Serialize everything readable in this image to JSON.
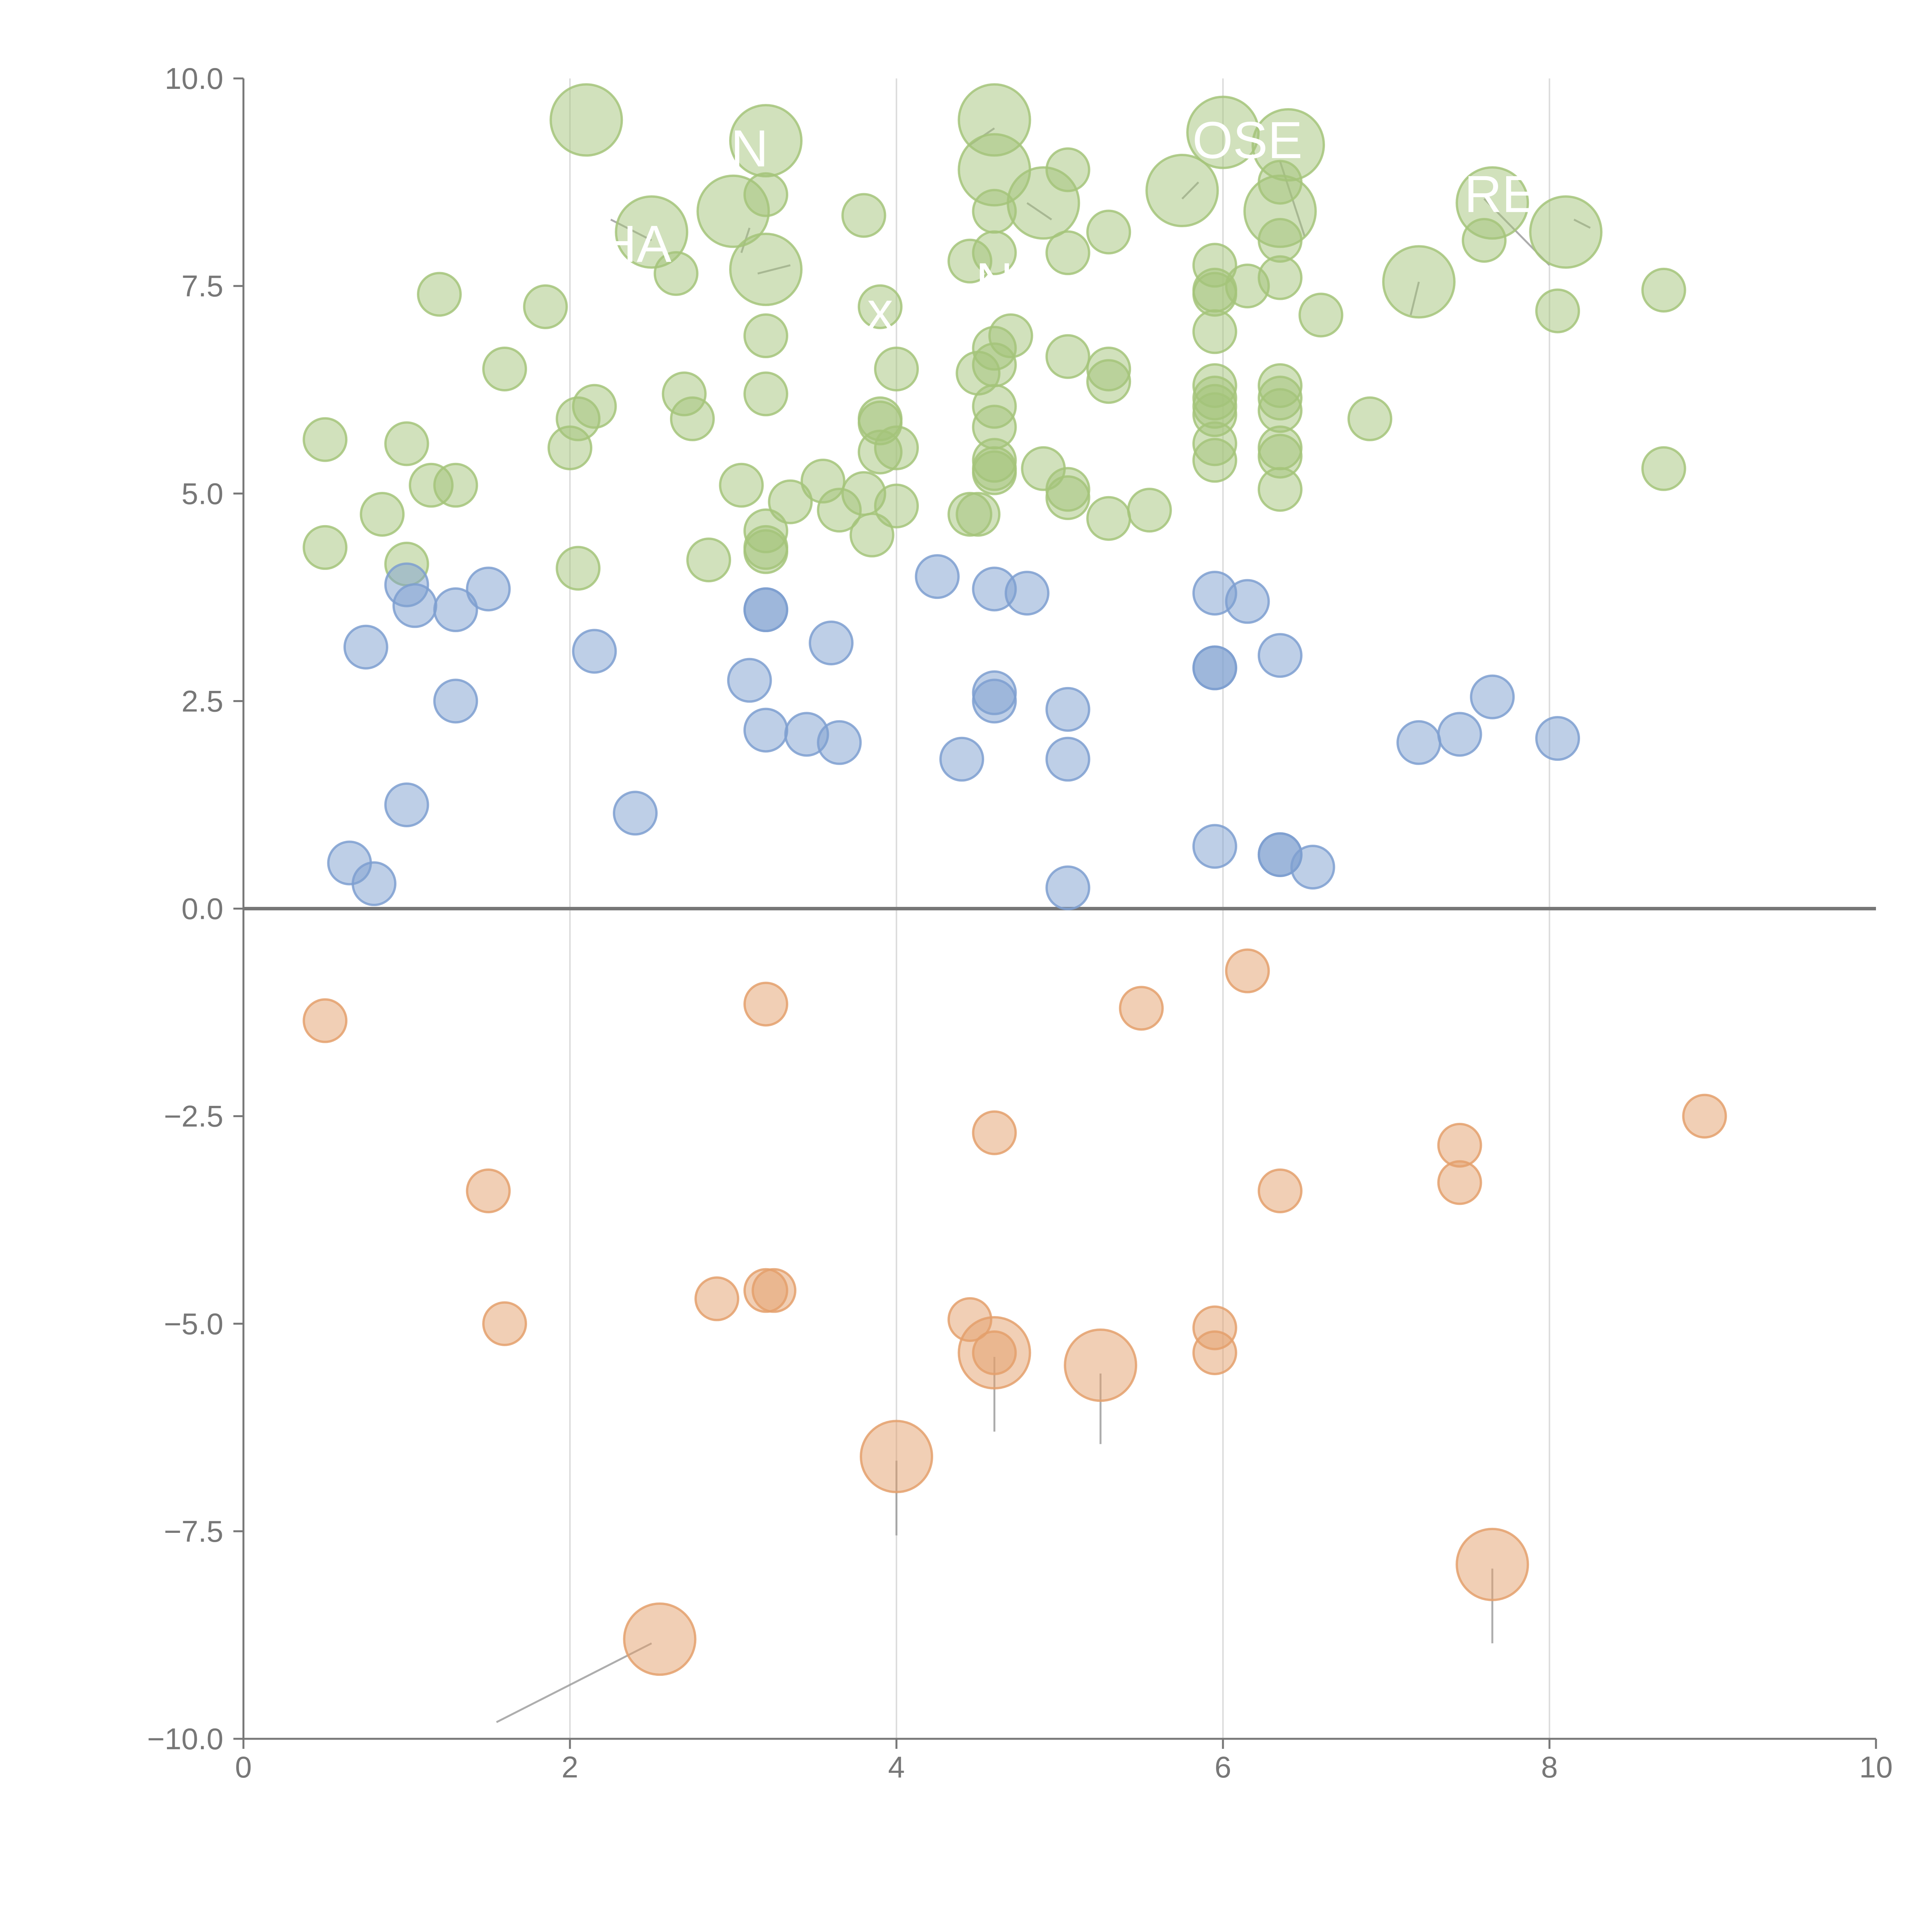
{
  "chart_data": {
    "type": "scatter",
    "title": "",
    "xlabel": "",
    "ylabel": "",
    "xlim": [
      0,
      10
    ],
    "ylim": [
      -10,
      10
    ],
    "x_ticks": [
      0,
      2,
      4,
      6,
      8,
      10
    ],
    "x_tick_labels": [
      "0",
      "2",
      "4",
      "6",
      "8",
      "10"
    ],
    "y_ticks": [
      10,
      7.5,
      5,
      2.5,
      0,
      -2.5,
      -5,
      -7.5,
      -10
    ],
    "y_tick_labels": [
      "10.0",
      "7.5",
      "5.0",
      "2.5",
      "0.0",
      "−2.5",
      "−5.0",
      "−7.5",
      "−10.0"
    ],
    "grid": {
      "x": true,
      "y": false
    },
    "zero_line": true,
    "legend": "none",
    "colors": {
      "green": "#a4c47a",
      "blue": "#7e9fd0",
      "orange": "#e4a06c",
      "grid": "#dddddd",
      "axis": "#777777"
    },
    "series": [
      {
        "color": "green",
        "points": [
          {
            "x": 2.1,
            "y": 9.5,
            "s": 3
          },
          {
            "x": 3.2,
            "y": 9.25,
            "s": 3
          },
          {
            "x": 4.6,
            "y": 9.5,
            "s": 3
          },
          {
            "x": 6.0,
            "y": 9.35,
            "s": 3
          },
          {
            "x": 6.4,
            "y": 9.2,
            "s": 3
          },
          {
            "x": 2.5,
            "y": 8.15,
            "s": 3
          },
          {
            "x": 3.0,
            "y": 8.4,
            "s": 3
          },
          {
            "x": 3.2,
            "y": 7.7,
            "s": 3
          },
          {
            "x": 4.6,
            "y": 8.9,
            "s": 3
          },
          {
            "x": 4.9,
            "y": 8.5,
            "s": 3
          },
          {
            "x": 5.75,
            "y": 8.65,
            "s": 3
          },
          {
            "x": 6.35,
            "y": 8.4,
            "s": 3
          },
          {
            "x": 7.65,
            "y": 8.5,
            "s": 3
          },
          {
            "x": 8.1,
            "y": 8.15,
            "s": 3
          },
          {
            "x": 7.2,
            "y": 7.55,
            "s": 3
          },
          {
            "x": 3.2,
            "y": 8.6,
            "s": 1
          },
          {
            "x": 3.8,
            "y": 8.35,
            "s": 1
          },
          {
            "x": 4.6,
            "y": 8.4,
            "s": 1
          },
          {
            "x": 4.6,
            "y": 7.9,
            "s": 1
          },
          {
            "x": 4.45,
            "y": 7.8,
            "s": 1
          },
          {
            "x": 5.05,
            "y": 8.9,
            "s": 1
          },
          {
            "x": 5.05,
            "y": 7.9,
            "s": 1
          },
          {
            "x": 5.3,
            "y": 8.15,
            "s": 1
          },
          {
            "x": 6.35,
            "y": 8.75,
            "s": 1
          },
          {
            "x": 6.35,
            "y": 8.05,
            "s": 1
          },
          {
            "x": 7.6,
            "y": 8.05,
            "s": 1
          },
          {
            "x": 8.05,
            "y": 7.2,
            "s": 1
          },
          {
            "x": 8.7,
            "y": 7.45,
            "s": 1
          },
          {
            "x": 1.2,
            "y": 7.4,
            "s": 1
          },
          {
            "x": 1.85,
            "y": 7.25,
            "s": 1
          },
          {
            "x": 2.65,
            "y": 7.65,
            "s": 1
          },
          {
            "x": 3.2,
            "y": 6.9,
            "s": 1
          },
          {
            "x": 3.9,
            "y": 7.25,
            "s": 1
          },
          {
            "x": 4.6,
            "y": 6.75,
            "s": 1
          },
          {
            "x": 4.7,
            "y": 6.9,
            "s": 1
          },
          {
            "x": 5.95,
            "y": 7.75,
            "s": 1
          },
          {
            "x": 5.95,
            "y": 7.45,
            "s": 1
          },
          {
            "x": 5.95,
            "y": 7.4,
            "s": 1
          },
          {
            "x": 6.15,
            "y": 7.5,
            "s": 1
          },
          {
            "x": 6.35,
            "y": 7.6,
            "s": 1
          },
          {
            "x": 6.6,
            "y": 7.15,
            "s": 1
          },
          {
            "x": 5.95,
            "y": 6.95,
            "s": 1
          },
          {
            "x": 1.6,
            "y": 6.5,
            "s": 1
          },
          {
            "x": 2.05,
            "y": 5.9,
            "s": 1
          },
          {
            "x": 2.15,
            "y": 6.05,
            "s": 1
          },
          {
            "x": 2.7,
            "y": 6.2,
            "s": 1
          },
          {
            "x": 2.75,
            "y": 5.9,
            "s": 1
          },
          {
            "x": 3.2,
            "y": 6.2,
            "s": 1
          },
          {
            "x": 4.0,
            "y": 6.5,
            "s": 1
          },
          {
            "x": 4.5,
            "y": 6.45,
            "s": 1
          },
          {
            "x": 4.6,
            "y": 6.55,
            "s": 1
          },
          {
            "x": 4.6,
            "y": 6.05,
            "s": 1
          },
          {
            "x": 5.05,
            "y": 6.65,
            "s": 1
          },
          {
            "x": 5.3,
            "y": 6.5,
            "s": 1
          },
          {
            "x": 5.3,
            "y": 6.35,
            "s": 1
          },
          {
            "x": 5.95,
            "y": 6.3,
            "s": 1
          },
          {
            "x": 5.95,
            "y": 6.15,
            "s": 1
          },
          {
            "x": 5.95,
            "y": 6.05,
            "s": 1
          },
          {
            "x": 5.95,
            "y": 5.95,
            "s": 1
          },
          {
            "x": 6.35,
            "y": 6.3,
            "s": 1
          },
          {
            "x": 6.35,
            "y": 6.15,
            "s": 1
          },
          {
            "x": 6.35,
            "y": 6.0,
            "s": 1
          },
          {
            "x": 6.9,
            "y": 5.9,
            "s": 1
          },
          {
            "x": 0.5,
            "y": 5.65,
            "s": 1
          },
          {
            "x": 1.0,
            "y": 5.6,
            "s": 1
          },
          {
            "x": 2.0,
            "y": 5.55,
            "s": 1
          },
          {
            "x": 3.9,
            "y": 5.9,
            "s": 1
          },
          {
            "x": 3.9,
            "y": 5.85,
            "s": 1
          },
          {
            "x": 3.9,
            "y": 5.5,
            "s": 1
          },
          {
            "x": 4.0,
            "y": 5.55,
            "s": 1
          },
          {
            "x": 4.6,
            "y": 5.8,
            "s": 1
          },
          {
            "x": 4.6,
            "y": 5.4,
            "s": 1
          },
          {
            "x": 4.6,
            "y": 5.3,
            "s": 1
          },
          {
            "x": 4.6,
            "y": 5.25,
            "s": 1
          },
          {
            "x": 4.9,
            "y": 5.3,
            "s": 1
          },
          {
            "x": 5.95,
            "y": 5.6,
            "s": 1
          },
          {
            "x": 5.95,
            "y": 5.4,
            "s": 1
          },
          {
            "x": 6.35,
            "y": 5.55,
            "s": 1
          },
          {
            "x": 6.35,
            "y": 5.45,
            "s": 1
          },
          {
            "x": 8.7,
            "y": 5.3,
            "s": 1
          },
          {
            "x": 1.15,
            "y": 5.1,
            "s": 1
          },
          {
            "x": 1.3,
            "y": 5.1,
            "s": 1
          },
          {
            "x": 3.05,
            "y": 5.1,
            "s": 1
          },
          {
            "x": 3.55,
            "y": 5.15,
            "s": 1
          },
          {
            "x": 3.35,
            "y": 4.9,
            "s": 1
          },
          {
            "x": 3.65,
            "y": 4.8,
            "s": 1
          },
          {
            "x": 3.8,
            "y": 5.0,
            "s": 1
          },
          {
            "x": 4.0,
            "y": 4.85,
            "s": 1
          },
          {
            "x": 4.45,
            "y": 4.75,
            "s": 1
          },
          {
            "x": 4.5,
            "y": 4.75,
            "s": 1
          },
          {
            "x": 5.05,
            "y": 5.05,
            "s": 1
          },
          {
            "x": 5.05,
            "y": 4.95,
            "s": 1
          },
          {
            "x": 5.3,
            "y": 4.7,
            "s": 1
          },
          {
            "x": 5.55,
            "y": 4.8,
            "s": 1
          },
          {
            "x": 6.35,
            "y": 5.05,
            "s": 1
          },
          {
            "x": 0.85,
            "y": 4.75,
            "s": 1
          },
          {
            "x": 0.5,
            "y": 4.35,
            "s": 1
          },
          {
            "x": 1.0,
            "y": 4.15,
            "s": 1
          },
          {
            "x": 2.05,
            "y": 4.1,
            "s": 1
          },
          {
            "x": 3.2,
            "y": 4.55,
            "s": 1
          },
          {
            "x": 3.2,
            "y": 4.35,
            "s": 1
          },
          {
            "x": 3.2,
            "y": 4.3,
            "s": 1
          },
          {
            "x": 3.85,
            "y": 4.5,
            "s": 1
          },
          {
            "x": 2.85,
            "y": 4.2,
            "s": 1
          }
        ]
      },
      {
        "color": "blue",
        "points": [
          {
            "x": 1.0,
            "y": 3.9,
            "s": 1
          },
          {
            "x": 1.05,
            "y": 3.65,
            "s": 1
          },
          {
            "x": 1.3,
            "y": 3.6,
            "s": 1
          },
          {
            "x": 1.5,
            "y": 3.85,
            "s": 1
          },
          {
            "x": 0.75,
            "y": 3.15,
            "s": 1
          },
          {
            "x": 2.15,
            "y": 3.1,
            "s": 1
          },
          {
            "x": 1.3,
            "y": 2.5,
            "s": 1
          },
          {
            "x": 1.0,
            "y": 1.25,
            "s": 1
          },
          {
            "x": 2.4,
            "y": 1.15,
            "s": 1
          },
          {
            "x": 0.65,
            "y": 0.55,
            "s": 1
          },
          {
            "x": 0.8,
            "y": 0.3,
            "s": 1
          },
          {
            "x": 3.2,
            "y": 3.6,
            "s": 1
          },
          {
            "x": 3.2,
            "y": 3.6,
            "s": 1
          },
          {
            "x": 3.6,
            "y": 3.2,
            "s": 1
          },
          {
            "x": 3.1,
            "y": 2.75,
            "s": 1
          },
          {
            "x": 3.2,
            "y": 2.15,
            "s": 1
          },
          {
            "x": 3.45,
            "y": 2.1,
            "s": 1
          },
          {
            "x": 3.65,
            "y": 2.0,
            "s": 1
          },
          {
            "x": 4.25,
            "y": 4.0,
            "s": 1
          },
          {
            "x": 4.6,
            "y": 3.85,
            "s": 1
          },
          {
            "x": 4.8,
            "y": 3.8,
            "s": 1
          },
          {
            "x": 4.6,
            "y": 2.6,
            "s": 1
          },
          {
            "x": 4.6,
            "y": 2.5,
            "s": 1
          },
          {
            "x": 4.4,
            "y": 1.8,
            "s": 1
          },
          {
            "x": 5.05,
            "y": 2.4,
            "s": 1
          },
          {
            "x": 5.05,
            "y": 1.8,
            "s": 1
          },
          {
            "x": 5.05,
            "y": 0.25,
            "s": 1
          },
          {
            "x": 5.95,
            "y": 3.8,
            "s": 1
          },
          {
            "x": 6.15,
            "y": 3.7,
            "s": 1
          },
          {
            "x": 6.35,
            "y": 3.05,
            "s": 1
          },
          {
            "x": 5.95,
            "y": 2.9,
            "s": 1
          },
          {
            "x": 5.95,
            "y": 2.9,
            "s": 1
          },
          {
            "x": 5.95,
            "y": 0.75,
            "s": 1
          },
          {
            "x": 6.35,
            "y": 0.65,
            "s": 1
          },
          {
            "x": 6.35,
            "y": 0.65,
            "s": 1
          },
          {
            "x": 6.55,
            "y": 0.5,
            "s": 1
          },
          {
            "x": 7.65,
            "y": 2.55,
            "s": 1
          },
          {
            "x": 7.2,
            "y": 2.0,
            "s": 1
          },
          {
            "x": 7.45,
            "y": 2.1,
            "s": 1
          },
          {
            "x": 8.05,
            "y": 2.05,
            "s": 1
          }
        ]
      },
      {
        "color": "orange",
        "points": [
          {
            "x": 0.5,
            "y": -1.35,
            "s": 1
          },
          {
            "x": 3.2,
            "y": -1.15,
            "s": 1
          },
          {
            "x": 5.5,
            "y": -1.2,
            "s": 1
          },
          {
            "x": 6.15,
            "y": -0.75,
            "s": 1
          },
          {
            "x": 4.6,
            "y": -2.7,
            "s": 1
          },
          {
            "x": 1.5,
            "y": -3.4,
            "s": 1
          },
          {
            "x": 7.45,
            "y": -2.85,
            "s": 1
          },
          {
            "x": 7.45,
            "y": -3.3,
            "s": 1
          },
          {
            "x": 6.35,
            "y": -3.4,
            "s": 1
          },
          {
            "x": 8.95,
            "y": -2.5,
            "s": 1
          },
          {
            "x": 1.6,
            "y": -5.0,
            "s": 1
          },
          {
            "x": 2.9,
            "y": -4.7,
            "s": 1
          },
          {
            "x": 3.2,
            "y": -4.6,
            "s": 1
          },
          {
            "x": 3.25,
            "y": -4.6,
            "s": 1
          },
          {
            "x": 4.45,
            "y": -4.95,
            "s": 1
          },
          {
            "x": 4.6,
            "y": -5.35,
            "s": 1
          },
          {
            "x": 5.95,
            "y": -5.05,
            "s": 1
          },
          {
            "x": 5.95,
            "y": -5.35,
            "s": 1
          },
          {
            "x": 4.6,
            "y": -5.35,
            "s": 3
          },
          {
            "x": 5.25,
            "y": -5.5,
            "s": 3
          },
          {
            "x": 4.0,
            "y": -6.6,
            "s": 3
          },
          {
            "x": 7.65,
            "y": -7.9,
            "s": 3
          },
          {
            "x": 2.55,
            "y": -8.8,
            "s": 3
          }
        ]
      }
    ],
    "leader_lines": [
      {
        "x1": 4.6,
        "y1": -5.4,
        "x2": 4.6,
        "y2": -6.3
      },
      {
        "x1": 5.25,
        "y1": -5.6,
        "x2": 5.25,
        "y2": -6.45
      },
      {
        "x1": 4.0,
        "y1": -6.65,
        "x2": 4.0,
        "y2": -7.55
      },
      {
        "x1": 7.65,
        "y1": -7.95,
        "x2": 7.65,
        "y2": -8.85
      },
      {
        "x1": 2.5,
        "y1": -8.85,
        "x2": 1.55,
        "y2": -9.8
      },
      {
        "x1": 2.25,
        "y1": 8.3,
        "x2": 2.5,
        "y2": 8.05
      },
      {
        "x1": 3.1,
        "y1": 8.2,
        "x2": 3.05,
        "y2": 7.9
      },
      {
        "x1": 3.35,
        "y1": 7.75,
        "x2": 3.15,
        "y2": 7.65
      },
      {
        "x1": 4.8,
        "y1": 8.5,
        "x2": 4.95,
        "y2": 8.3
      },
      {
        "x1": 5.75,
        "y1": 8.55,
        "x2": 5.85,
        "y2": 8.75
      },
      {
        "x1": 6.35,
        "y1": 9.0,
        "x2": 6.5,
        "y2": 8.1
      },
      {
        "x1": 7.6,
        "y1": 8.55,
        "x2": 8.0,
        "y2": 7.75
      },
      {
        "x1": 8.15,
        "y1": 8.3,
        "x2": 8.25,
        "y2": 8.2
      },
      {
        "x1": 7.2,
        "y1": 7.55,
        "x2": 7.15,
        "y2": 7.15
      },
      {
        "x1": 4.6,
        "y1": 9.4,
        "x2": 4.45,
        "y2": 9.2
      }
    ],
    "annotations": [
      {
        "text": "N",
        "x": 3.1,
        "y": 9.15
      },
      {
        "text": "OSE",
        "x": 6.15,
        "y": 9.25
      },
      {
        "text": "HA",
        "x": 2.4,
        "y": 8.0
      },
      {
        "text": "RE",
        "x": 7.7,
        "y": 8.6
      },
      {
        "text": "N",
        "x": 4.6,
        "y": 7.55
      },
      {
        "text": "x",
        "x": 3.9,
        "y": 7.2
      }
    ]
  }
}
